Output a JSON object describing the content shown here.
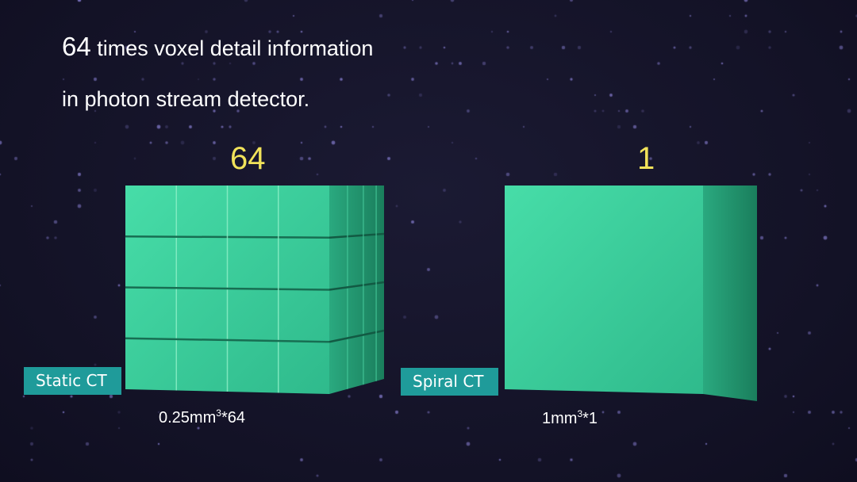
{
  "headline": {
    "number": "64",
    "line1_rest": "times voxel detail information",
    "line2": "in photon stream detector."
  },
  "left": {
    "count": "64",
    "label": "Static CT",
    "caption_base": "0.25mm",
    "caption_exp": "3",
    "caption_mult": "*64",
    "grid": 4
  },
  "right": {
    "count": "1",
    "label": "Spiral CT",
    "caption_base": "1mm",
    "caption_exp": "3",
    "caption_mult": "*1",
    "grid": 1
  },
  "colors": {
    "cube": "#36c696",
    "cube_side": "#1f8e68",
    "badge": "#1f9b9a",
    "count": "#f1e25a",
    "background": "#15142a"
  }
}
